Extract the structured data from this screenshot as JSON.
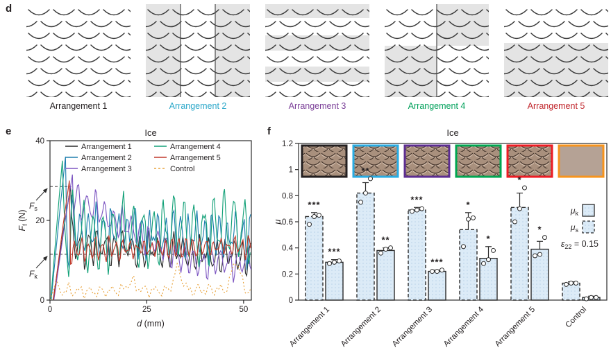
{
  "figure": {
    "panel_d_label": "d",
    "panel_e_label": "e",
    "panel_f_label": "f"
  },
  "arrangement_row": {
    "shade_color": "#e4e4e4",
    "line_color": "#3a3a3a",
    "split_line_color": "#4a4a4a",
    "items": [
      {
        "label": "Arrangement 1",
        "color": "#231f20",
        "shading": "none"
      },
      {
        "label": "Arrangement 2",
        "color": "#2aa7c9",
        "shading": "vertical"
      },
      {
        "label": "Arrangement 3",
        "color": "#7b3f98",
        "shading": "horizontal"
      },
      {
        "label": "Arrangement 4",
        "color": "#00a05a",
        "shading": "checker"
      },
      {
        "label": "Arrangement 5",
        "color": "#c1272d",
        "shading": "bottom"
      }
    ]
  },
  "chart_data": [
    {
      "type": "line",
      "panel": "e",
      "title": "Ice",
      "xlabel": {
        "base": "d",
        "unit": " (mm)"
      },
      "ylabel": {
        "base": "F",
        "sub": "f",
        "unit": " (N)"
      },
      "xlim": [
        0,
        52
      ],
      "ylim": [
        0,
        40
      ],
      "xticks": [
        0,
        25,
        50
      ],
      "yticks": [
        0,
        20,
        40
      ],
      "grid": false,
      "legend_position": "top-inside",
      "annotations": [
        {
          "label_base": "F",
          "label_sub": "s",
          "value": 28.5,
          "x_extent": 5.5
        },
        {
          "label_base": "F",
          "label_sub": "k",
          "value": 11.5,
          "x_extent": 52
        }
      ],
      "series": [
        {
          "name": "Arrangement 1",
          "color": "#2b2b2b",
          "dash": "solid",
          "ramp_start": 0.8,
          "peak_d": 5.3,
          "peak_F": 28.5,
          "mean_start": 14,
          "mean_end": 11,
          "decay_len": 42,
          "amplitude": 4.5,
          "period": 2.2,
          "phase": 0.5,
          "noise": 2.0,
          "spikes": []
        },
        {
          "name": "Arrangement 2",
          "color": "#1f7fae",
          "dash": "solid",
          "ramp_start": 0.3,
          "peak_d": 4.0,
          "peak_F": 36,
          "mean_start": 17.5,
          "mean_end": 16,
          "decay_len": 40,
          "amplitude": 6.5,
          "period": 2.0,
          "phase": 2.1,
          "noise": 2.5,
          "spikes": []
        },
        {
          "name": "Arrangement 3",
          "color": "#7e57c2",
          "dash": "solid",
          "ramp_start": 1.0,
          "peak_d": 5.8,
          "peak_F": 31.5,
          "mean_start": 26,
          "mean_end": 9.5,
          "decay_len": 30,
          "amplitude": 4.0,
          "period": 2.3,
          "phase": 4.0,
          "noise": 1.5,
          "spikes": []
        },
        {
          "name": "Arrangement 4",
          "color": "#13a178",
          "dash": "solid",
          "ramp_start": 0.2,
          "peak_d": 3.2,
          "peak_F": 35,
          "mean_start": 15,
          "mean_end": 18.5,
          "decay_len": 46,
          "amplitude": 9.5,
          "period": 2.6,
          "phase": 1.2,
          "noise": 2.0,
          "spikes": []
        },
        {
          "name": "Arrangement 5",
          "color": "#c0392b",
          "dash": "solid",
          "ramp_start": 0.9,
          "peak_d": 5.0,
          "peak_F": 30,
          "mean_start": 12.5,
          "mean_end": 13.5,
          "decay_len": 46,
          "amplitude": 2.6,
          "period": 1.8,
          "phase": 3.3,
          "noise": 1.2,
          "spikes": []
        },
        {
          "name": "Control",
          "color": "#e8a33d",
          "dash": "dotted",
          "ramp_start": 0.1,
          "peak_d": 1.2,
          "peak_F": 3.5,
          "mean_start": 2.3,
          "mean_end": 2.5,
          "decay_len": 46,
          "amplitude": 1.4,
          "period": 2.8,
          "phase": 0.0,
          "noise": 0.8,
          "spikes": [
            {
              "d": 21,
              "F": 2
            },
            {
              "d": 33,
              "F": 5.5
            },
            {
              "d": 48,
              "F": 7.5
            }
          ]
        }
      ],
      "legend_order": [
        [
          "Arrangement 1",
          "Arrangement 2",
          "Arrangement 3"
        ],
        [
          "Arrangement 4",
          "Arrangement 5",
          "Control"
        ]
      ]
    },
    {
      "type": "bar",
      "panel": "f",
      "title": "Ice",
      "ylabel": {
        "base": "μ"
      },
      "ylim": [
        0,
        1.2
      ],
      "yticks": [
        0,
        0.2,
        0.4,
        0.6,
        0.8,
        1,
        1.2
      ],
      "categories": [
        "Arrangement 1",
        "Arrangement 2",
        "Arrangement 3",
        "Arrangement 4",
        "Arrangement 5",
        "Control"
      ],
      "series": [
        {
          "name": "mu_s",
          "label_base": "μ",
          "label_sub": "s",
          "style": "dashed",
          "values": [
            0.64,
            0.82,
            0.69,
            0.54,
            0.71,
            0.13
          ],
          "errors": [
            0.03,
            0.08,
            0.02,
            0.13,
            0.11,
            0.01
          ],
          "sig": [
            "***",
            "**",
            "***",
            "*",
            "*",
            ""
          ],
          "points": [
            [
              0.58,
              0.64,
              0.65
            ],
            [
              0.75,
              0.82,
              0.93
            ],
            [
              0.68,
              0.69,
              0.7
            ],
            [
              0.41,
              0.62,
              0.63
            ],
            [
              0.6,
              0.7,
              0.86
            ],
            [
              0.12,
              0.13,
              0.13
            ]
          ]
        },
        {
          "name": "mu_k",
          "label_base": "μ",
          "label_sub": "k",
          "style": "solid",
          "values": [
            0.29,
            0.38,
            0.22,
            0.32,
            0.39,
            0.02
          ],
          "errors": [
            0.02,
            0.02,
            0.01,
            0.09,
            0.06,
            0.01
          ],
          "sig": [
            "***",
            "**",
            "***",
            "*",
            "*",
            ""
          ],
          "points": [
            [
              0.28,
              0.29,
              0.3
            ],
            [
              0.36,
              0.39,
              0.4
            ],
            [
              0.22,
              0.22,
              0.23
            ],
            [
              0.28,
              0.31,
              0.38
            ],
            [
              0.34,
              0.35,
              0.48
            ],
            [
              0.01,
              0.02,
              0.02
            ]
          ]
        }
      ],
      "legend": {
        "strain_base": "ε",
        "strain_sub": "22",
        "strain_rest": " = 0.15"
      },
      "bar_fill": "#dcebf7",
      "bar_dot": "#b9d2e8",
      "bar_edge": "#2b2b2b",
      "thumbnails": [
        {
          "name": "arrangement-1",
          "border": "#231f20",
          "type": "scales"
        },
        {
          "name": "arrangement-2",
          "border": "#29abe2",
          "type": "scales"
        },
        {
          "name": "arrangement-3",
          "border": "#5c2d91",
          "type": "scales"
        },
        {
          "name": "arrangement-4",
          "border": "#00a651",
          "type": "scales"
        },
        {
          "name": "arrangement-5",
          "border": "#ed1c24",
          "type": "scales"
        },
        {
          "name": "control",
          "border": "#f7941d",
          "type": "plain"
        }
      ],
      "photo_colors": {
        "base": "#a9907d",
        "dark": "#46372e",
        "light": "#d8c3b2",
        "plain": "#b5a295"
      }
    }
  ]
}
